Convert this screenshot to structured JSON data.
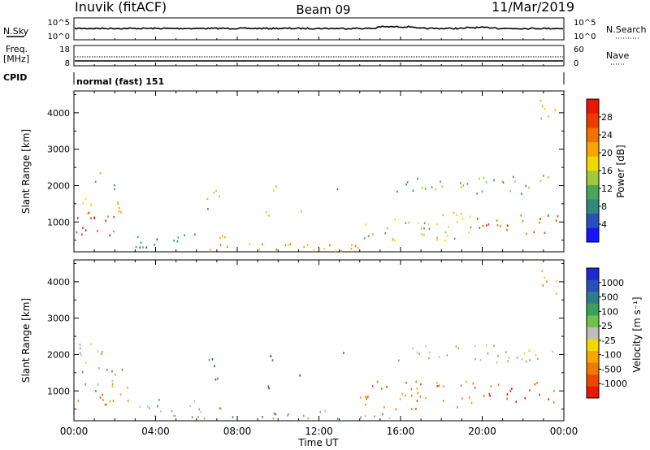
{
  "header": {
    "station": "Inuvik (fitACF)",
    "beam": "Beam 09",
    "date": "11/Mar/2019"
  },
  "sky_panel": {
    "left_label": "N.Sky",
    "right_label": "N.Search",
    "left_ticks": [
      "10^5",
      "10^0"
    ],
    "right_ticks": [
      "10^5",
      "10^0"
    ]
  },
  "freq_panel": {
    "left_label_line1": "Freq.",
    "left_label_line2": "[MHz]",
    "right_label": "Nave",
    "left_ticks": [
      "18",
      "8"
    ],
    "right_ticks": [
      "60",
      "0"
    ]
  },
  "cpid_panel": {
    "label": "CPID",
    "value": "normal (fast) 151"
  },
  "chart_data": [
    {
      "type": "heatmap",
      "name": "Power",
      "ylabel": "Slant Range [km]",
      "colorbar_label": "Power [dB]",
      "colorbar_ticks": [
        "4",
        "8",
        "12",
        "16",
        "20",
        "24",
        "28"
      ],
      "colorbar_colors": [
        "#1414ff",
        "#2851b9",
        "#2e8a7a",
        "#4ea35a",
        "#9fc93b",
        "#f0d800",
        "#f5a600",
        "#f07000",
        "#ee3a00",
        "#e81800"
      ],
      "x_ticks": [
        "00:00",
        "04:00",
        "08:00",
        "12:00",
        "16:00",
        "20:00",
        "00:00"
      ],
      "y_ticks": [
        "1000",
        "2000",
        "3000",
        "4000"
      ],
      "xlim_hours": [
        0,
        24
      ],
      "ylim_km": [
        180,
        4600
      ],
      "regions": [
        {
          "t0": 0.1,
          "t1": 2.7,
          "r0": 650,
          "r1": 1350,
          "level": 8
        },
        {
          "t0": 0.3,
          "t1": 2.6,
          "r0": 1200,
          "r1": 1700,
          "level": 5
        },
        {
          "t0": 1.0,
          "t1": 2.0,
          "r0": 1900,
          "r1": 2400,
          "level": 3
        },
        {
          "t0": 2.8,
          "t1": 6.0,
          "r0": 300,
          "r1": 800,
          "level": 2
        },
        {
          "t0": 6.0,
          "t1": 7.5,
          "r0": 250,
          "r1": 700,
          "level": 7
        },
        {
          "t0": 7.4,
          "t1": 11.0,
          "r0": 200,
          "r1": 450,
          "level": 6
        },
        {
          "t0": 6.5,
          "t1": 7.2,
          "r0": 1200,
          "r1": 2000,
          "level": 3
        },
        {
          "t0": 9.2,
          "t1": 9.6,
          "r0": 1100,
          "r1": 1600,
          "level": 6
        },
        {
          "t0": 9.5,
          "t1": 10.0,
          "r0": 1800,
          "r1": 2200,
          "level": 4
        },
        {
          "t0": 10.8,
          "t1": 11.2,
          "r0": 1200,
          "r1": 1600,
          "level": 5
        },
        {
          "t0": 11.0,
          "t1": 15.5,
          "r0": 200,
          "r1": 500,
          "level": 6
        },
        {
          "t0": 12.8,
          "t1": 13.2,
          "r0": 1800,
          "r1": 2100,
          "level": 3
        },
        {
          "t0": 14.0,
          "t1": 19.5,
          "r0": 500,
          "r1": 1300,
          "level": 4
        },
        {
          "t0": 15.8,
          "t1": 23.5,
          "r0": 1800,
          "r1": 2300,
          "level": 3
        },
        {
          "t0": 19.5,
          "t1": 23.8,
          "r0": 700,
          "r1": 1250,
          "level": 8
        },
        {
          "t0": 22.8,
          "t1": 23.9,
          "r0": 3700,
          "r1": 4400,
          "level": 5
        }
      ]
    },
    {
      "type": "heatmap",
      "name": "Velocity",
      "ylabel": "Slant Range [km]",
      "xlabel": "Time UT",
      "colorbar_label": "Velocity [m s⁻¹]",
      "colorbar_ticks": [
        "-1000",
        "-500",
        "-100",
        "-25",
        "25",
        "100",
        "500",
        "1000"
      ],
      "colorbar_colors": [
        "#e81800",
        "#f04500",
        "#f07a00",
        "#f5a600",
        "#f0d800",
        "#bdbdbd",
        "#6cc24a",
        "#3aa05a",
        "#2f7d8a",
        "#2850b8",
        "#1a2ad0"
      ],
      "x_ticks": [
        "00:00",
        "04:00",
        "08:00",
        "12:00",
        "16:00",
        "20:00",
        "00:00"
      ],
      "y_ticks": [
        "1000",
        "2000",
        "3000",
        "4000"
      ],
      "xlim_hours": [
        0,
        24
      ],
      "ylim_km": [
        180,
        4600
      ],
      "regions": [
        {
          "t0": 0.1,
          "t1": 2.7,
          "r0": 650,
          "r1": 1350,
          "level": 2
        },
        {
          "t0": 0.3,
          "t1": 2.6,
          "r0": 1200,
          "r1": 1700,
          "level": 6
        },
        {
          "t0": 0.2,
          "t1": 2.0,
          "r0": 1800,
          "r1": 2400,
          "level": 5
        },
        {
          "t0": 2.8,
          "t1": 6.0,
          "r0": 300,
          "r1": 800,
          "level": 6
        },
        {
          "t0": 6.0,
          "t1": 7.5,
          "r0": 250,
          "r1": 700,
          "level": 5
        },
        {
          "t0": 7.4,
          "t1": 11.0,
          "r0": 200,
          "r1": 450,
          "level": 7
        },
        {
          "t0": 6.5,
          "t1": 7.2,
          "r0": 1200,
          "r1": 2000,
          "level": 8
        },
        {
          "t0": 9.2,
          "t1": 9.6,
          "r0": 1100,
          "r1": 1600,
          "level": 8
        },
        {
          "t0": 9.5,
          "t1": 10.0,
          "r0": 1800,
          "r1": 2200,
          "level": 9
        },
        {
          "t0": 10.8,
          "t1": 11.2,
          "r0": 1200,
          "r1": 1600,
          "level": 10
        },
        {
          "t0": 11.0,
          "t1": 15.5,
          "r0": 200,
          "r1": 500,
          "level": 6
        },
        {
          "t0": 12.8,
          "t1": 13.2,
          "r0": 1800,
          "r1": 2100,
          "level": 8
        },
        {
          "t0": 14.0,
          "t1": 19.5,
          "r0": 500,
          "r1": 1300,
          "level": 2
        },
        {
          "t0": 15.8,
          "t1": 23.5,
          "r0": 1800,
          "r1": 2300,
          "level": 5
        },
        {
          "t0": 19.5,
          "t1": 23.8,
          "r0": 700,
          "r1": 1250,
          "level": 1
        },
        {
          "t0": 22.8,
          "t1": 23.9,
          "r0": 3700,
          "r1": 4400,
          "level": 3
        }
      ]
    }
  ]
}
